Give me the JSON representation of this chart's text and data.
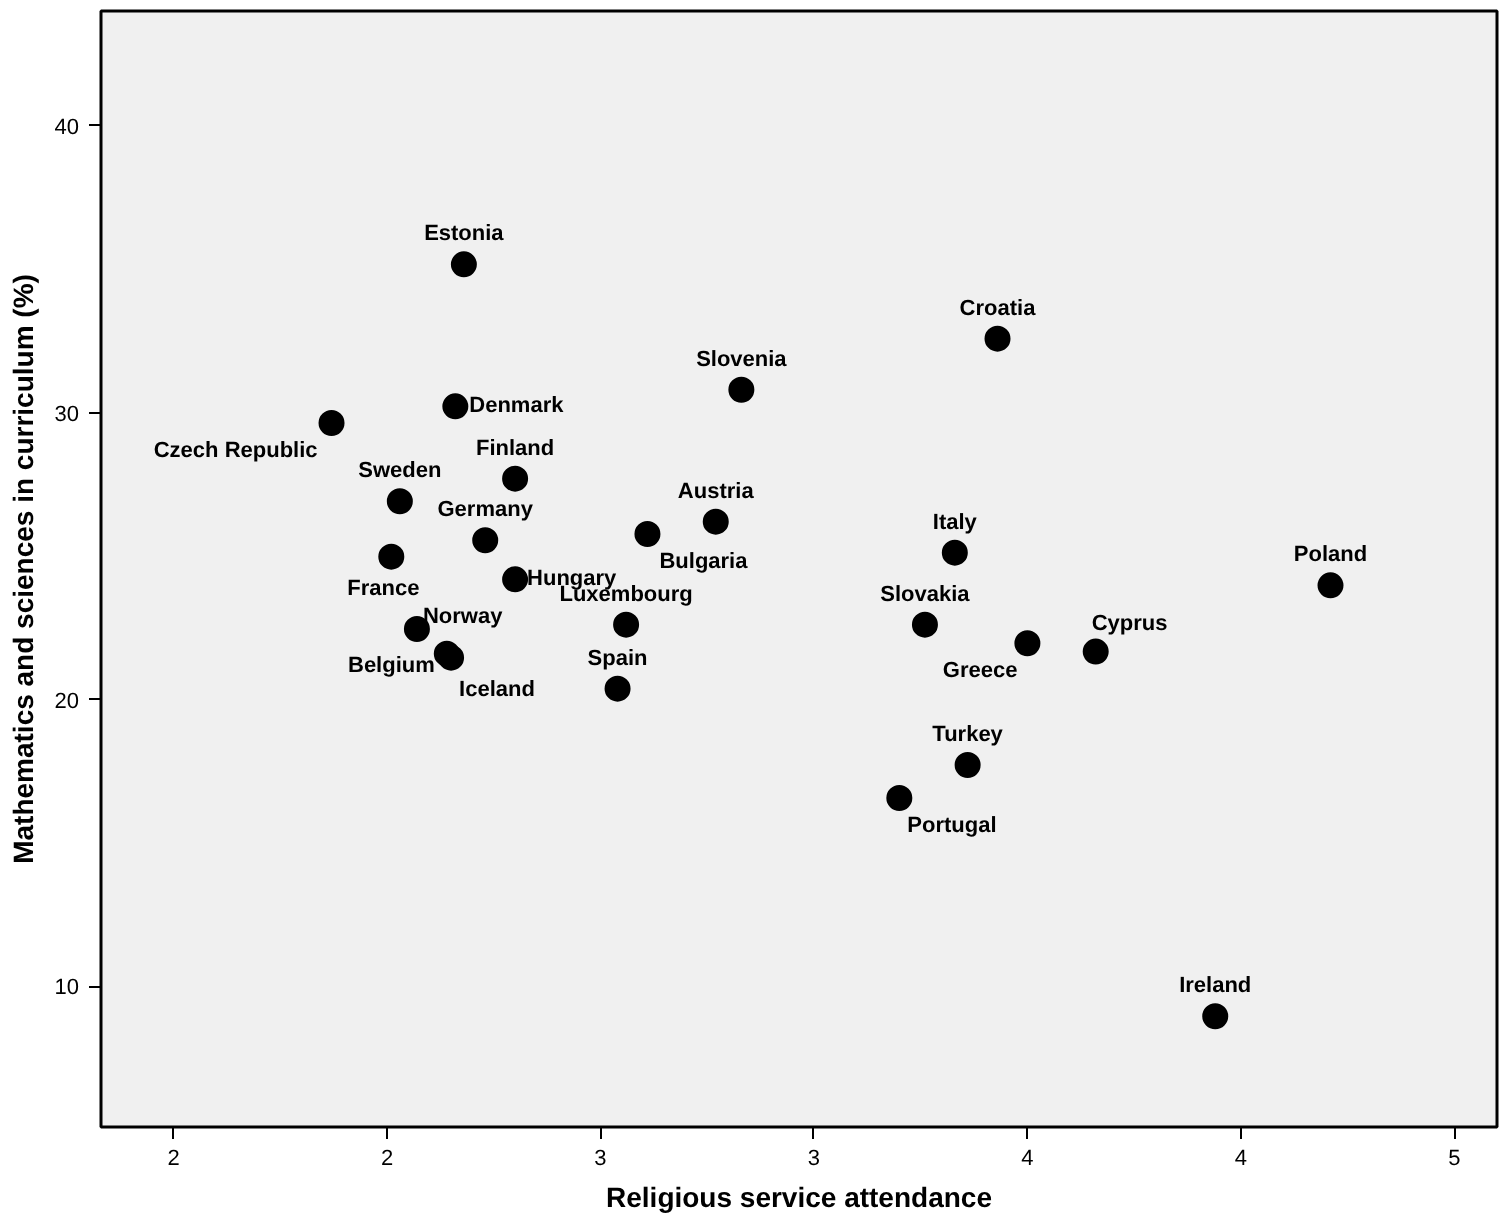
{
  "chart_data": {
    "type": "scatter",
    "xlabel": "Religious service attendance",
    "ylabel": "Mathematics and sciences in curriculum (%)",
    "x": [
      2.18,
      2.16,
      1.87,
      2.3,
      2.03,
      2.01,
      2.23,
      2.3,
      2.07,
      2.14,
      2.15,
      2.56,
      2.54,
      2.61,
      2.77,
      2.83,
      3.43,
      3.33,
      3.26,
      3.5,
      3.66,
      4.21,
      3.36,
      3.2,
      3.94
    ],
    "series": [
      {
        "color": "#000000",
        "values": [
          35.17,
          30.22,
          29.64,
          27.7,
          26.91,
          24.98,
          25.55,
          24.19,
          22.46,
          21.6,
          21.46,
          22.61,
          20.38,
          25.77,
          26.2,
          30.8,
          32.58,
          25.12,
          22.61,
          21.96,
          21.67,
          23.98,
          17.72,
          16.57,
          8.96
        ]
      }
    ],
    "annotations": [
      {
        "text": "Estonia",
        "x": 2.18,
        "y": 35.17
      },
      {
        "text": "Denmark",
        "x": 2.16,
        "y": 30.22
      },
      {
        "text": "Czech Republic",
        "x": 1.87,
        "y": 29.64
      },
      {
        "text": "Finland",
        "x": 2.3,
        "y": 27.7
      },
      {
        "text": "Sweden",
        "x": 2.03,
        "y": 26.91
      },
      {
        "text": "France",
        "x": 2.01,
        "y": 24.98
      },
      {
        "text": "Germany",
        "x": 2.23,
        "y": 25.55
      },
      {
        "text": "Hungary",
        "x": 2.3,
        "y": 24.19
      },
      {
        "text": "Norway",
        "x": 2.07,
        "y": 22.46
      },
      {
        "text": "Belgium",
        "x": 2.14,
        "y": 21.6
      },
      {
        "text": "Iceland",
        "x": 2.15,
        "y": 21.46
      },
      {
        "text": "Luxembourg",
        "x": 2.56,
        "y": 22.61
      },
      {
        "text": "Spain",
        "x": 2.54,
        "y": 20.38
      },
      {
        "text": "Bulgaria",
        "x": 2.61,
        "y": 25.77
      },
      {
        "text": "Austria",
        "x": 2.77,
        "y": 26.2
      },
      {
        "text": "Slovenia",
        "x": 2.83,
        "y": 30.8
      },
      {
        "text": "Croatia",
        "x": 3.43,
        "y": 32.58
      },
      {
        "text": "Italy",
        "x": 3.33,
        "y": 25.12
      },
      {
        "text": "Slovakia",
        "x": 3.26,
        "y": 22.61
      },
      {
        "text": "Greece",
        "x": 3.5,
        "y": 21.96
      },
      {
        "text": "Cyprus",
        "x": 3.66,
        "y": 21.67
      },
      {
        "text": "Poland",
        "x": 4.21,
        "y": 23.98
      },
      {
        "text": "Turkey",
        "x": 3.36,
        "y": 17.72
      },
      {
        "text": "Portugal",
        "x": 3.2,
        "y": 16.57
      },
      {
        "text": "Ireland",
        "x": 3.94,
        "y": 8.96
      }
    ],
    "marker": "circle",
    "grid": false,
    "xlim": [
      1.33,
      4.6
    ],
    "ylim": [
      5.1,
      44.0
    ],
    "xticks": [
      {
        "value": 1.5,
        "label": "2"
      },
      {
        "value": 2.0,
        "label": "2"
      },
      {
        "value": 2.5,
        "label": "3"
      },
      {
        "value": 3.0,
        "label": "3"
      },
      {
        "value": 3.5,
        "label": "4"
      },
      {
        "value": 4.0,
        "label": "4"
      },
      {
        "value": 4.5,
        "label": "5"
      }
    ],
    "yticks": [
      10,
      20,
      30,
      40
    ]
  }
}
